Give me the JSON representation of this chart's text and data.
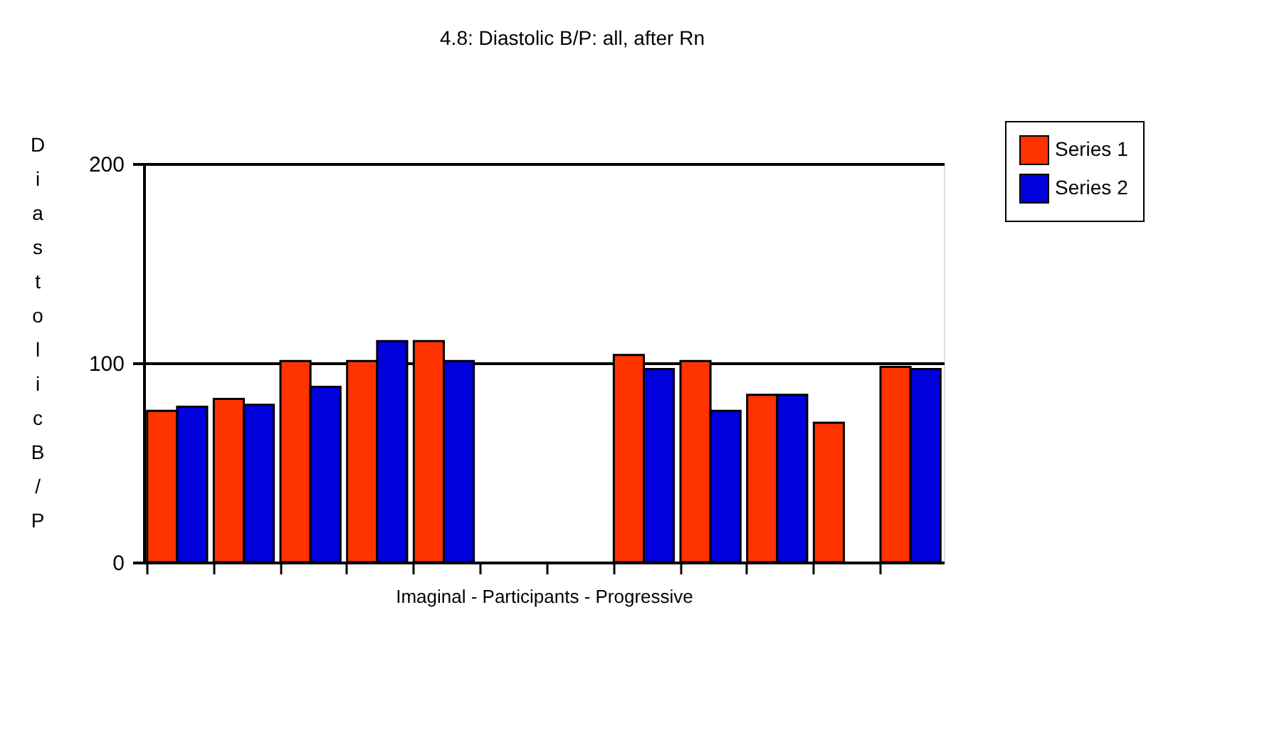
{
  "chart_data": {
    "type": "bar",
    "title": "4.8:  Diastolic B/P: all, after Rn",
    "xlabel": "Imaginal - Participants - Progressive",
    "ylabel": "Diastolic B/P",
    "categories": [
      null,
      null,
      null,
      null,
      null,
      null,
      null,
      null,
      null,
      null,
      null,
      null
    ],
    "series": [
      {
        "name": "Series 1",
        "color": "#ff3300",
        "values": [
          76,
          82,
          101,
          101,
          111,
          null,
          null,
          104,
          101,
          84,
          70,
          98
        ]
      },
      {
        "name": "Series 2",
        "color": "#0000dd",
        "values": [
          78,
          79,
          88,
          111,
          101,
          null,
          null,
          97,
          76,
          84,
          null,
          97
        ]
      }
    ],
    "ylim": [
      0,
      200
    ],
    "yticks": [
      0,
      100,
      200
    ],
    "grid": "y",
    "legend": "top right"
  }
}
